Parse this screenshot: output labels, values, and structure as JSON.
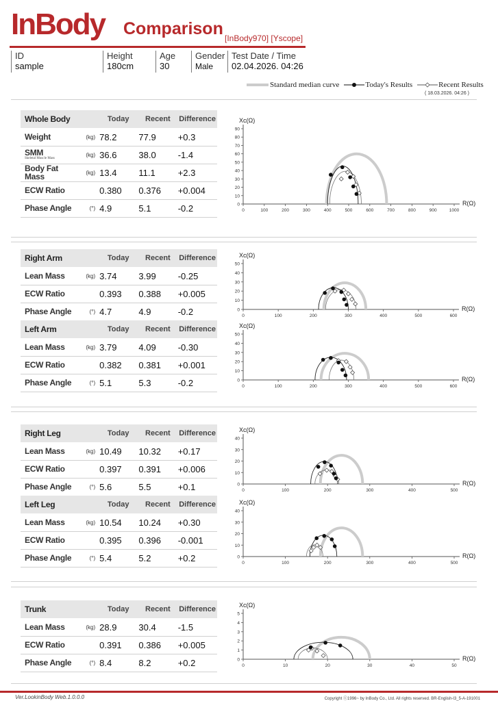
{
  "header": {
    "brand": "InBody",
    "title": "Comparison",
    "device": "[InBody970] [Yscope]"
  },
  "info": {
    "id_label": "ID",
    "id_value": "sample",
    "height_label": "Height",
    "height_value": "180cm",
    "age_label": "Age",
    "age_value": "30",
    "gender_label": "Gender",
    "gender_value": "Male",
    "date_label": "Test Date / Time",
    "date_value": "02.04.2026. 04:26"
  },
  "legend": {
    "standard": "Standard median curve",
    "today": "Today's Results",
    "recent": "Recent Results",
    "recent_date": "( 18.03.2026. 04:26 )"
  },
  "colors": {
    "brand": "#b7292b",
    "standard_curve": "#cccccc",
    "today": "#111111",
    "recent": "#555555"
  },
  "columns": {
    "today": "Today",
    "recent": "Recent",
    "difference": "Difference"
  },
  "whole_body": {
    "title": "Whole Body",
    "rows": [
      {
        "name": "Weight",
        "unit": "(kg)",
        "today": "78.2",
        "recent": "77.9",
        "diff": "+0.3"
      },
      {
        "name": "SMM",
        "sub": "Skeletal Muscle Mass",
        "unit": "(kg)",
        "today": "36.6",
        "recent": "38.0",
        "diff": "-1.4"
      },
      {
        "name": "Body Fat Mass",
        "unit": "(kg)",
        "today": "13.4",
        "recent": "11.1",
        "diff": "+2.3"
      },
      {
        "name": "ECW Ratio",
        "unit": "",
        "today": "0.380",
        "recent": "0.376",
        "diff": "+0.004"
      },
      {
        "name": "Phase Angle",
        "unit": "(°)",
        "today": "4.9",
        "recent": "5.1",
        "diff": "-0.2"
      }
    ]
  },
  "right_arm": {
    "title": "Right Arm",
    "rows": [
      {
        "name": "Lean Mass",
        "unit": "(kg)",
        "today": "3.74",
        "recent": "3.99",
        "diff": "-0.25"
      },
      {
        "name": "ECW Ratio",
        "unit": "",
        "today": "0.393",
        "recent": "0.388",
        "diff": "+0.005"
      },
      {
        "name": "Phase Angle",
        "unit": "(°)",
        "today": "4.7",
        "recent": "4.9",
        "diff": "-0.2"
      }
    ]
  },
  "left_arm": {
    "title": "Left Arm",
    "rows": [
      {
        "name": "Lean Mass",
        "unit": "(kg)",
        "today": "3.79",
        "recent": "4.09",
        "diff": "-0.30"
      },
      {
        "name": "ECW Ratio",
        "unit": "",
        "today": "0.382",
        "recent": "0.381",
        "diff": "+0.001"
      },
      {
        "name": "Phase Angle",
        "unit": "(°)",
        "today": "5.1",
        "recent": "5.3",
        "diff": "-0.2"
      }
    ]
  },
  "right_leg": {
    "title": "Right Leg",
    "rows": [
      {
        "name": "Lean Mass",
        "unit": "(kg)",
        "today": "10.49",
        "recent": "10.32",
        "diff": "+0.17"
      },
      {
        "name": "ECW Ratio",
        "unit": "",
        "today": "0.397",
        "recent": "0.391",
        "diff": "+0.006"
      },
      {
        "name": "Phase Angle",
        "unit": "(°)",
        "today": "5.6",
        "recent": "5.5",
        "diff": "+0.1"
      }
    ]
  },
  "left_leg": {
    "title": "Left Leg",
    "rows": [
      {
        "name": "Lean Mass",
        "unit": "(kg)",
        "today": "10.54",
        "recent": "10.24",
        "diff": "+0.30"
      },
      {
        "name": "ECW Ratio",
        "unit": "",
        "today": "0.395",
        "recent": "0.396",
        "diff": "-0.001"
      },
      {
        "name": "Phase Angle",
        "unit": "(°)",
        "today": "5.4",
        "recent": "5.2",
        "diff": "+0.2"
      }
    ]
  },
  "trunk": {
    "title": "Trunk",
    "rows": [
      {
        "name": "Lean Mass",
        "unit": "(kg)",
        "today": "28.9",
        "recent": "30.4",
        "diff": "-1.5"
      },
      {
        "name": "ECW Ratio",
        "unit": "",
        "today": "0.391",
        "recent": "0.386",
        "diff": "+0.005"
      },
      {
        "name": "Phase Angle",
        "unit": "(°)",
        "today": "8.4",
        "recent": "8.2",
        "diff": "+0.2"
      }
    ]
  },
  "chart_data": [
    {
      "type": "scatter",
      "panel": "whole-body",
      "xlabel": "R(Ω)",
      "ylabel": "Xc(Ω)",
      "xlim": [
        0,
        1000
      ],
      "ylim": [
        0,
        90
      ],
      "xticks": [
        0,
        100,
        200,
        300,
        400,
        500,
        600,
        700,
        800,
        900,
        1000
      ],
      "yticks": [
        0,
        10,
        20,
        30,
        40,
        50,
        60,
        70,
        80,
        90
      ],
      "standard": {
        "r0": 680,
        "rinf": 395,
        "peak": 60
      },
      "today": {
        "points": [
          [
            415,
            35
          ],
          [
            470,
            44
          ],
          [
            507,
            32
          ],
          [
            522,
            21
          ],
          [
            537,
            12
          ]
        ],
        "r0": 545,
        "rinf": 400
      },
      "recent": {
        "points": [
          [
            465,
            30
          ],
          [
            495,
            38
          ],
          [
            522,
            33
          ],
          [
            535,
            23
          ],
          [
            550,
            13
          ]
        ],
        "r0": 560,
        "rinf": 410
      }
    },
    {
      "type": "scatter",
      "panel": "right-arm",
      "xlabel": "R(Ω)",
      "ylabel": "Xc(Ω)",
      "xlim": [
        0,
        600
      ],
      "ylim": [
        0,
        50
      ],
      "xticks": [
        0,
        100,
        200,
        300,
        400,
        500,
        600
      ],
      "yticks": [
        0,
        10,
        20,
        30,
        40,
        50
      ],
      "standard": {
        "r0": 350,
        "rinf": 230,
        "peak": 29
      },
      "today": {
        "points": [
          [
            233,
            18
          ],
          [
            256,
            23
          ],
          [
            280,
            19
          ],
          [
            288,
            11
          ],
          [
            295,
            5
          ]
        ],
        "r0": 300,
        "rinf": 215
      },
      "recent": {
        "points": [
          [
            262,
            20
          ],
          [
            287,
            21
          ],
          [
            300,
            17
          ],
          [
            310,
            11
          ],
          [
            320,
            6
          ]
        ],
        "r0": 322,
        "rinf": 235
      }
    },
    {
      "type": "scatter",
      "panel": "left-arm",
      "xlabel": "R(Ω)",
      "ylabel": "Xc(Ω)",
      "xlim": [
        0,
        600
      ],
      "ylim": [
        0,
        50
      ],
      "xticks": [
        0,
        100,
        200,
        300,
        400,
        500,
        600
      ],
      "yticks": [
        0,
        10,
        20,
        30,
        40,
        50
      ],
      "standard": {
        "r0": 358,
        "rinf": 222,
        "peak": 29
      },
      "today": {
        "points": [
          [
            228,
            22
          ],
          [
            250,
            24
          ],
          [
            272,
            19
          ],
          [
            283,
            11
          ],
          [
            292,
            5
          ]
        ],
        "r0": 295,
        "rinf": 205
      },
      "recent": {
        "points": [
          [
            272,
            21
          ],
          [
            294,
            20
          ],
          [
            305,
            14
          ],
          [
            312,
            8
          ]
        ],
        "r0": 316,
        "rinf": 245
      }
    },
    {
      "type": "scatter",
      "panel": "right-leg",
      "xlabel": "R(Ω)",
      "ylabel": "Xc(Ω)",
      "xlim": [
        0,
        500
      ],
      "ylim": [
        0,
        40
      ],
      "xticks": [
        0,
        100,
        200,
        300,
        400,
        500
      ],
      "yticks": [
        0,
        10,
        20,
        30,
        40
      ],
      "standard": {
        "r0": 283,
        "rinf": 183,
        "peak": 25
      },
      "today": {
        "points": [
          [
            178,
            15
          ],
          [
            193,
            19
          ],
          [
            208,
            16
          ],
          [
            215,
            9
          ],
          [
            220,
            5
          ]
        ],
        "r0": 224,
        "rinf": 160
      },
      "recent": {
        "points": [
          [
            182,
            9
          ],
          [
            198,
            12
          ],
          [
            210,
            11
          ],
          [
            218,
            7
          ],
          [
            224,
            4
          ]
        ],
        "r0": 227,
        "rinf": 170
      }
    },
    {
      "type": "scatter",
      "panel": "left-leg",
      "xlabel": "R(Ω)",
      "ylabel": "Xc(Ω)",
      "xlim": [
        0,
        500
      ],
      "ylim": [
        0,
        40
      ],
      "xticks": [
        0,
        100,
        200,
        300,
        400,
        500
      ],
      "yticks": [
        0,
        10,
        20,
        30,
        40
      ],
      "standard": {
        "r0": 283,
        "rinf": 183,
        "peak": 25
      },
      "today": {
        "points": [
          [
            174,
            16
          ],
          [
            192,
            18
          ],
          [
            210,
            15
          ],
          [
            217,
            9
          ]
        ],
        "r0": 222,
        "rinf": 158
      },
      "recent": {
        "points": [
          [
            161,
            5
          ],
          [
            167,
            8
          ],
          [
            175,
            10
          ],
          [
            183,
            8
          ]
        ],
        "r0": 189,
        "rinf": 150
      }
    },
    {
      "type": "scatter",
      "panel": "trunk",
      "xlabel": "R(Ω)",
      "ylabel": "Xc(Ω)",
      "xlim": [
        0,
        50
      ],
      "ylim": [
        0,
        5
      ],
      "xticks": [
        0,
        10,
        20,
        30,
        40,
        50
      ],
      "yticks": [
        0,
        1,
        2,
        3,
        4,
        5
      ],
      "standard": {
        "r0": 30,
        "rinf": 16.5,
        "peak": 2.4
      },
      "today": {
        "points": [
          [
            16,
            1.3
          ],
          [
            19.5,
            1.8
          ],
          [
            23,
            1.5
          ]
        ],
        "r0": 26,
        "rinf": 12
      },
      "recent": {
        "points": [
          [
            15.5,
            1.0
          ],
          [
            16.3,
            1.2
          ],
          [
            17.5,
            0.9
          ],
          [
            19,
            0.4
          ]
        ],
        "r0": 20,
        "rinf": 13
      }
    }
  ],
  "footer": {
    "version": "Ver.LookinBody Web.1.0.0.0",
    "copyright": "Copyright ⓒ1996~ by InBody Co., Ltd. All rights reserved. BR-English-I3_5-A-191001"
  }
}
